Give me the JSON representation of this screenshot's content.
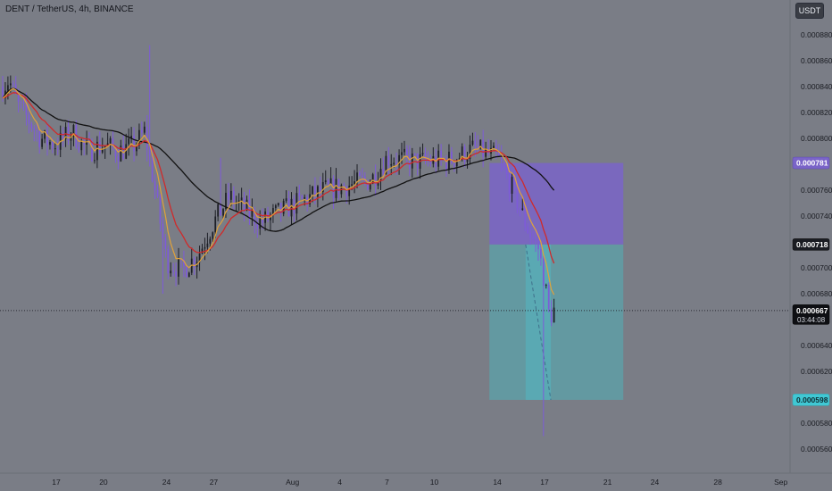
{
  "header": {
    "symbol_title": "DENT / TetherUS, 4h, BINANCE",
    "currency_button": "USDT"
  },
  "colors": {
    "background": "#7a7d86",
    "bull_candle": "#1d1f26",
    "bear_candle": "#7d5bd8",
    "ema_fast": "#e0a23a",
    "ema_slow": "#d02a2a",
    "ma_long": "#111111",
    "stop_zone": "#7a64c8",
    "target_zone": "#5f9ea6",
    "target_label": "#40c8d4",
    "entry_label": "#1a1c22"
  },
  "chart_data": {
    "type": "candlestick",
    "title": "",
    "ylim": [
      0.00055,
      0.00089
    ],
    "y_ticks": [
      "0.000880",
      "0.000860",
      "0.000840",
      "0.000820",
      "0.000800",
      "0.000760",
      "0.000740",
      "0.000700",
      "0.000680",
      "0.000640",
      "0.000620",
      "0.000580",
      "0.000560"
    ],
    "x_ticks": [
      {
        "label": "17",
        "day": 17
      },
      {
        "label": "20",
        "day": 20
      },
      {
        "label": "24",
        "day": 24
      },
      {
        "label": "27",
        "day": 27
      },
      {
        "label": "Aug",
        "day": 32
      },
      {
        "label": "4",
        "day": 35
      },
      {
        "label": "7",
        "day": 38
      },
      {
        "label": "10",
        "day": 41
      },
      {
        "label": "14",
        "day": 45
      },
      {
        "label": "17",
        "day": 48
      },
      {
        "label": "21",
        "day": 52
      },
      {
        "label": "24",
        "day": 55
      },
      {
        "label": "28",
        "day": 59
      },
      {
        "label": "Sep",
        "day": 63
      }
    ],
    "x_range_days": [
      13.6,
      63.0
    ],
    "bars_per_day": 6,
    "price_anchors": [
      {
        "day": 13.6,
        "price": 0.00084
      },
      {
        "day": 14.0,
        "price": 0.000845
      },
      {
        "day": 14.6,
        "price": 0.000825
      },
      {
        "day": 15.2,
        "price": 0.000815
      },
      {
        "day": 16.0,
        "price": 0.0008
      },
      {
        "day": 17.0,
        "price": 0.000795
      },
      {
        "day": 18.0,
        "price": 0.000805
      },
      {
        "day": 19.0,
        "price": 0.00079
      },
      {
        "day": 20.0,
        "price": 0.000795
      },
      {
        "day": 21.0,
        "price": 0.00079
      },
      {
        "day": 22.0,
        "price": 0.000795
      },
      {
        "day": 22.6,
        "price": 0.000805
      },
      {
        "day": 23.0,
        "price": 0.00078
      },
      {
        "day": 23.6,
        "price": 0.000735
      },
      {
        "day": 24.0,
        "price": 0.000705
      },
      {
        "day": 25.0,
        "price": 0.000698
      },
      {
        "day": 26.0,
        "price": 0.00071
      },
      {
        "day": 27.0,
        "price": 0.000735
      },
      {
        "day": 28.0,
        "price": 0.000755
      },
      {
        "day": 29.0,
        "price": 0.000745
      },
      {
        "day": 30.0,
        "price": 0.000735
      },
      {
        "day": 31.0,
        "price": 0.000742
      },
      {
        "day": 32.0,
        "price": 0.000748
      },
      {
        "day": 34.0,
        "price": 0.00076
      },
      {
        "day": 36.0,
        "price": 0.000765
      },
      {
        "day": 37.0,
        "price": 0.000768
      },
      {
        "day": 38.0,
        "price": 0.000785
      },
      {
        "day": 40.0,
        "price": 0.000782
      },
      {
        "day": 42.0,
        "price": 0.000783
      },
      {
        "day": 43.5,
        "price": 0.000792
      },
      {
        "day": 45.0,
        "price": 0.000785
      },
      {
        "day": 46.0,
        "price": 0.00076
      },
      {
        "day": 47.0,
        "price": 0.000728
      },
      {
        "day": 47.6,
        "price": 0.000715
      },
      {
        "day": 48.0,
        "price": 0.00069
      },
      {
        "day": 48.3,
        "price": 0.000662
      },
      {
        "day": 48.6,
        "price": 0.000667
      }
    ],
    "spikes": [
      {
        "day": 22.9,
        "high": 0.000872
      },
      {
        "day": 23.8,
        "low": 0.00068
      },
      {
        "day": 27.4,
        "high": 0.000785
      },
      {
        "day": 48.0,
        "low": 0.00057
      }
    ],
    "series": [
      {
        "kind": "ema_fast"
      },
      {
        "kind": "ema_slow"
      },
      {
        "kind": "ma_long"
      }
    ],
    "position_tool": {
      "start_day": 44.5,
      "end_day": 53.0,
      "stop_price": 0.000781,
      "entry_price": 0.000718,
      "target_price": 0.000598,
      "projection_from_day": 46.8,
      "projection_to_day": 48.4
    },
    "price_labels": [
      {
        "kind": "stop",
        "text": "0.000781",
        "price": 0.000781
      },
      {
        "kind": "entry",
        "text": "0.000718",
        "price": 0.000718
      },
      {
        "kind": "current",
        "text": "0.000667",
        "price": 0.000667,
        "countdown": "03:44:08"
      },
      {
        "kind": "target",
        "text": "0.000598",
        "price": 0.000598
      }
    ]
  }
}
